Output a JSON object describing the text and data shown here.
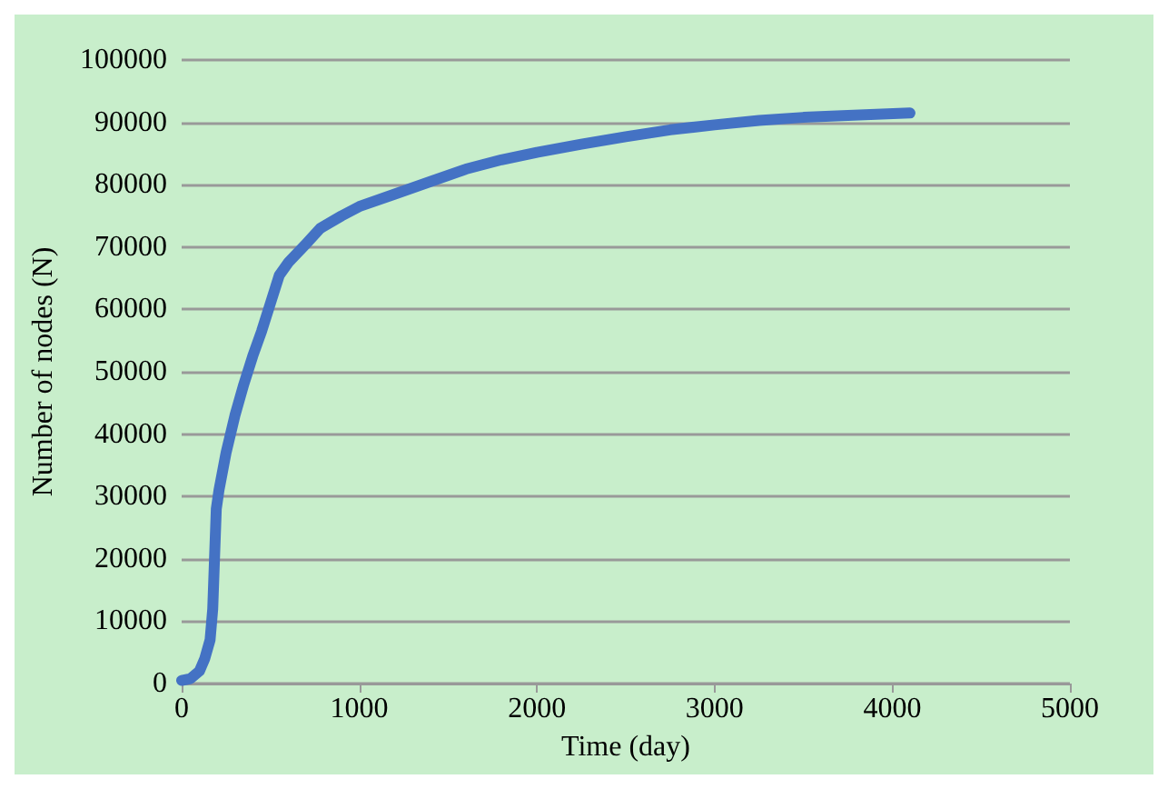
{
  "chart_data": {
    "type": "line",
    "xlabel": "Time (day)",
    "ylabel": "Number of nodes (N)",
    "x": [
      0,
      50,
      100,
      130,
      160,
      175,
      185,
      195,
      210,
      250,
      300,
      350,
      400,
      450,
      500,
      550,
      600,
      700,
      780,
      900,
      1000,
      1200,
      1400,
      1600,
      1800,
      2000,
      2250,
      2500,
      2750,
      3000,
      3250,
      3500,
      3750,
      4100
    ],
    "series": [
      {
        "color": "#4472c4",
        "values": [
          500,
          800,
          2000,
          4000,
          7000,
          12000,
          20000,
          28000,
          31000,
          37000,
          43000,
          48000,
          52500,
          56500,
          61000,
          65500,
          67500,
          70500,
          73000,
          75000,
          76500,
          78500,
          80500,
          82500,
          84000,
          85200,
          86500,
          87700,
          88800,
          89600,
          90300,
          90800,
          91100,
          91500
        ]
      }
    ],
    "xlim": [
      0,
      5000
    ],
    "xticks": [
      0,
      1000,
      2000,
      3000,
      4000,
      5000
    ],
    "ylim": [
      0,
      100000
    ],
    "yticks": [
      0,
      10000,
      20000,
      30000,
      40000,
      50000,
      60000,
      70000,
      80000,
      90000,
      100000
    ],
    "grid": "y",
    "marker": "none",
    "line_style": "solid"
  }
}
